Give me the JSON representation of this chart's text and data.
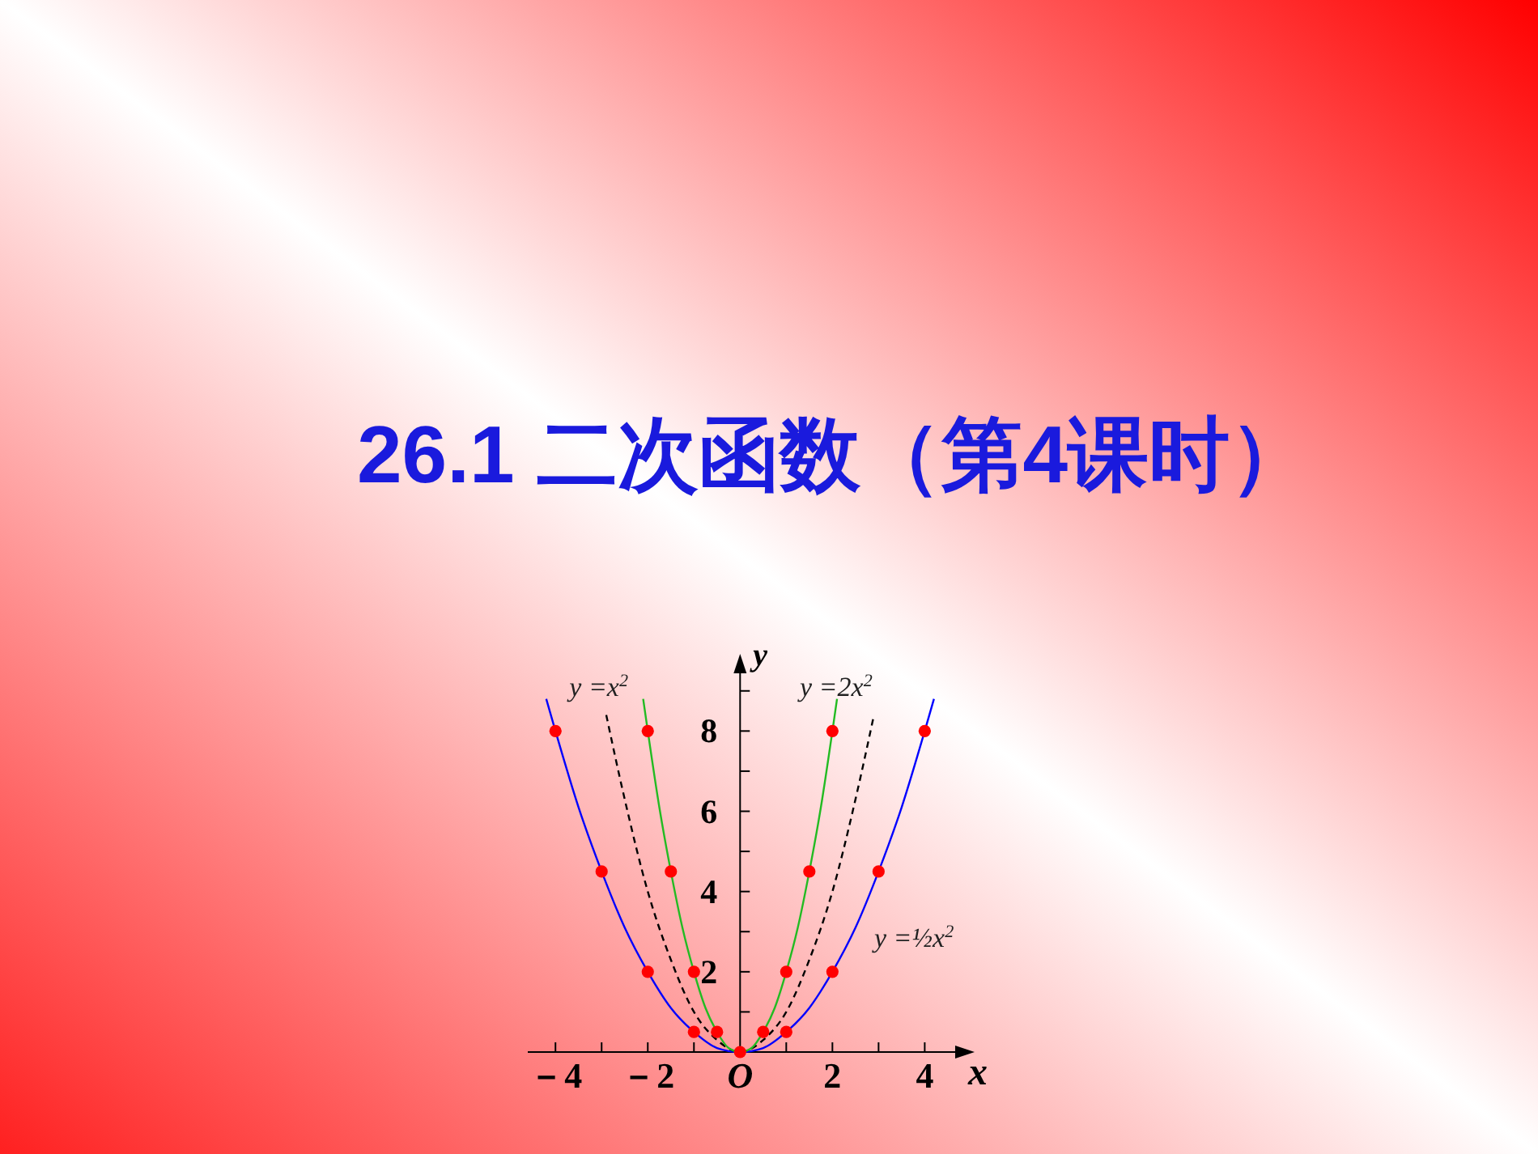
{
  "chart_data": {
    "type": "line",
    "title": "26.1 二次函数（第4课时）",
    "xlabel": "x",
    "ylabel": "y",
    "xlim": [
      -4.6,
      4.8
    ],
    "ylim": [
      0,
      9.6
    ],
    "xticks": [
      {
        "value": -4,
        "label": "－4"
      },
      {
        "value": -3,
        "label": null
      },
      {
        "value": -2,
        "label": "－2"
      },
      {
        "value": -1,
        "label": null
      },
      {
        "value": 0,
        "label": "O"
      },
      {
        "value": 1,
        "label": null
      },
      {
        "value": 2,
        "label": "2"
      },
      {
        "value": 3,
        "label": null
      },
      {
        "value": 4,
        "label": "4"
      }
    ],
    "yticks": [
      {
        "value": 1,
        "label": null
      },
      2,
      {
        "value": 3,
        "label": null
      },
      4,
      {
        "value": 5,
        "label": null
      },
      6,
      {
        "value": 7,
        "label": null
      },
      8,
      {
        "value": 9,
        "label": null
      }
    ],
    "grid": false,
    "marker": "none",
    "series": [
      {
        "name": "y =½x$^{2}$",
        "color": "#0000ff",
        "line_style": "solid",
        "x": [
          -4.2,
          -4,
          -3.5,
          -3,
          -2.5,
          -2,
          -1.5,
          -1,
          -0.5,
          0,
          0.5,
          1,
          1.5,
          2,
          2.5,
          3,
          3.5,
          4,
          4.2
        ],
        "values": [
          8.8,
          8,
          6.1,
          4.5,
          3.1,
          2,
          1.1,
          0.5,
          0.1,
          0,
          0.1,
          0.5,
          1.1,
          2,
          3.1,
          4.5,
          6.1,
          8,
          8.8
        ]
      },
      {
        "name": "y =x$^{2}$",
        "color": "#000000",
        "line_style": "dashed",
        "x": [
          -2.9,
          -2.5,
          -2,
          -1.5,
          -1,
          -0.5,
          0,
          0.5,
          1,
          1.5,
          2,
          2.5,
          2.9
        ],
        "values": [
          8.4,
          6.3,
          4,
          2.3,
          1,
          0.3,
          0,
          0.3,
          1,
          2.3,
          4,
          6.3,
          8.4
        ]
      },
      {
        "name": "y =2x$^{2}$",
        "color": "#22bb22",
        "line_style": "solid",
        "x": [
          -2.1,
          -2,
          -1.75,
          -1.5,
          -1.25,
          -1,
          -0.75,
          -0.5,
          -0.25,
          0,
          0.25,
          0.5,
          0.75,
          1,
          1.25,
          1.5,
          1.75,
          2,
          2.1
        ],
        "values": [
          8.8,
          8,
          6.1,
          4.5,
          3.1,
          2,
          1.1,
          0.5,
          0.1,
          0,
          0.1,
          0.5,
          1.1,
          2,
          3.1,
          4.5,
          6.1,
          8,
          8.8
        ]
      },
      {
        "type": "scatter",
        "marker": "circle",
        "color": "#ff0000",
        "x": [
          -4,
          -3,
          -2,
          -1,
          -2,
          -1.5,
          -1,
          -0.5,
          0,
          0.5,
          1,
          1.5,
          2,
          1,
          2,
          3,
          4
        ],
        "values": [
          8,
          4.5,
          2,
          0.5,
          8,
          4.5,
          2,
          0.5,
          0,
          0.5,
          2,
          4.5,
          8,
          0.5,
          2,
          4.5,
          8
        ]
      }
    ]
  }
}
